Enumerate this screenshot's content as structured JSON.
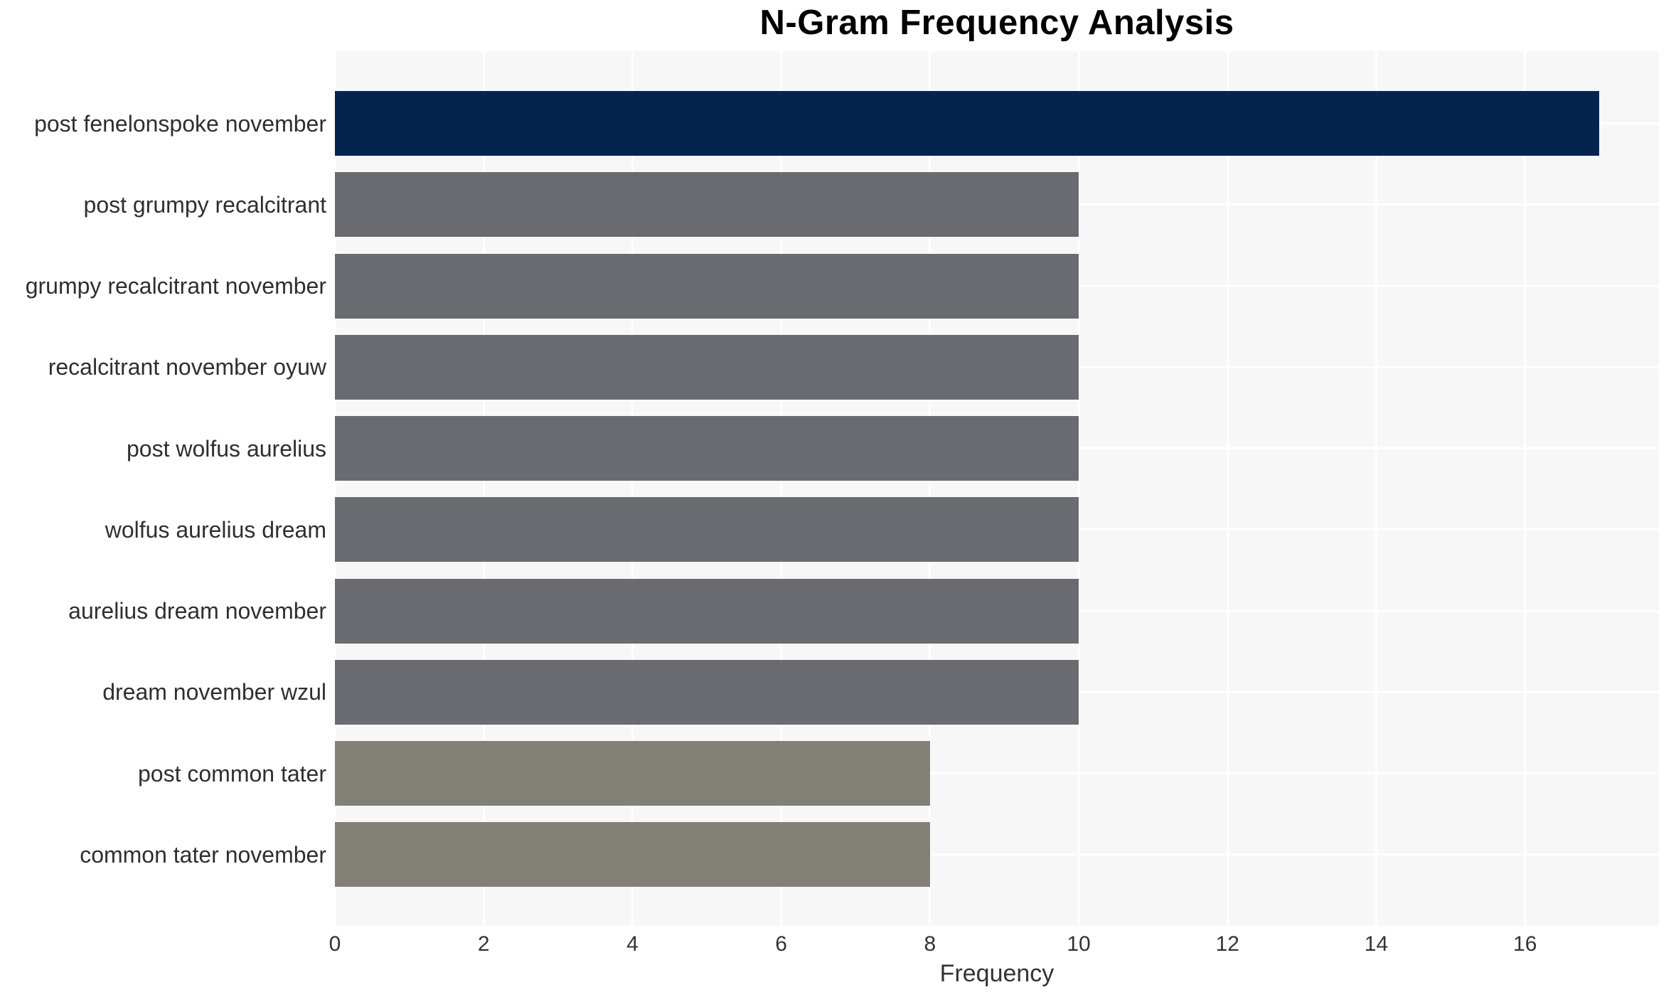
{
  "chart_data": {
    "type": "bar",
    "orientation": "horizontal",
    "title": "N-Gram Frequency Analysis",
    "xlabel": "Frequency",
    "ylabel": "",
    "categories": [
      "post fenelonspoke november",
      "post grumpy recalcitrant",
      "grumpy recalcitrant november",
      "recalcitrant november oyuw",
      "post wolfus aurelius",
      "wolfus aurelius dream",
      "aurelius dream november",
      "dream november wzul",
      "post common tater",
      "common tater november"
    ],
    "values": [
      17,
      10,
      10,
      10,
      10,
      10,
      10,
      10,
      8,
      8
    ],
    "bar_colors": [
      "#04234e",
      "#696b70",
      "#696b70",
      "#696b70",
      "#696b70",
      "#696b70",
      "#696b70",
      "#696b70",
      "#838078",
      "#838078"
    ],
    "xticks": [
      0,
      2,
      4,
      6,
      8,
      10,
      12,
      14,
      16
    ],
    "xlim": [
      0,
      17.8
    ],
    "grid": true,
    "grid_color": "#ffffff",
    "plot_background": "#f7f7f8",
    "page_background": "#ffffff",
    "legend": false,
    "title_color": "#000000",
    "tick_color": "#333333",
    "label_color": "#2f2f2f"
  }
}
